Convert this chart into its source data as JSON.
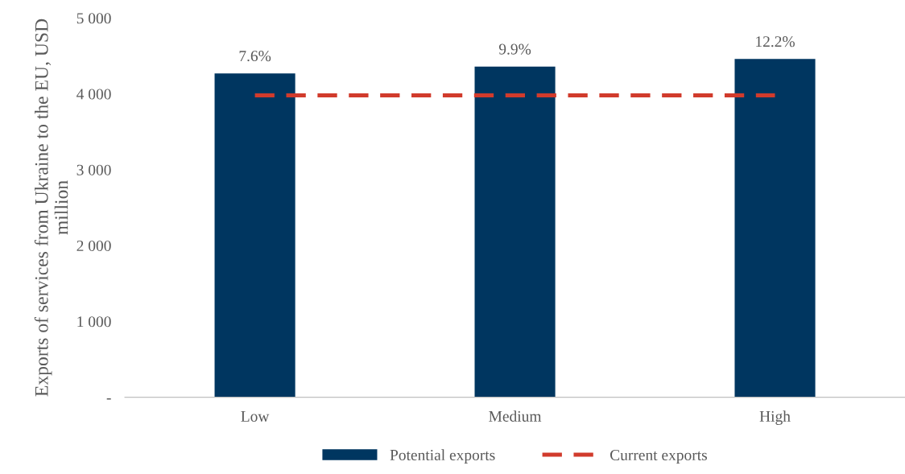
{
  "chart_data": {
    "type": "bar",
    "ylabel": "Exports of services from Ukraine to the EU, USD million",
    "categories": [
      "Low",
      "Medium",
      "High"
    ],
    "series": [
      {
        "name": "Potential exports",
        "color": "#003660",
        "values": [
          4270,
          4360,
          4460
        ]
      },
      {
        "name": "Current exports",
        "type": "line",
        "color": "#d13b2c",
        "values": [
          3980,
          3980,
          3980
        ],
        "line_style": "dashed"
      }
    ],
    "ylim": [
      0,
      5000
    ],
    "yticks": [
      {
        "value": 0,
        "label": "-"
      },
      {
        "value": 1000,
        "label": "1 000"
      },
      {
        "value": 2000,
        "label": "2 000"
      },
      {
        "value": 3000,
        "label": "3 000"
      },
      {
        "value": 4000,
        "label": "4 000"
      },
      {
        "value": 5000,
        "label": "5 000"
      }
    ],
    "annotations": [
      {
        "text": "7.6%",
        "x": "Low",
        "y": 4270
      },
      {
        "text": "9.9%",
        "x": "Medium",
        "y": 4360
      },
      {
        "text": "12.2%",
        "x": "High",
        "y": 4460
      }
    ],
    "grid": false,
    "legend": "bottom"
  }
}
